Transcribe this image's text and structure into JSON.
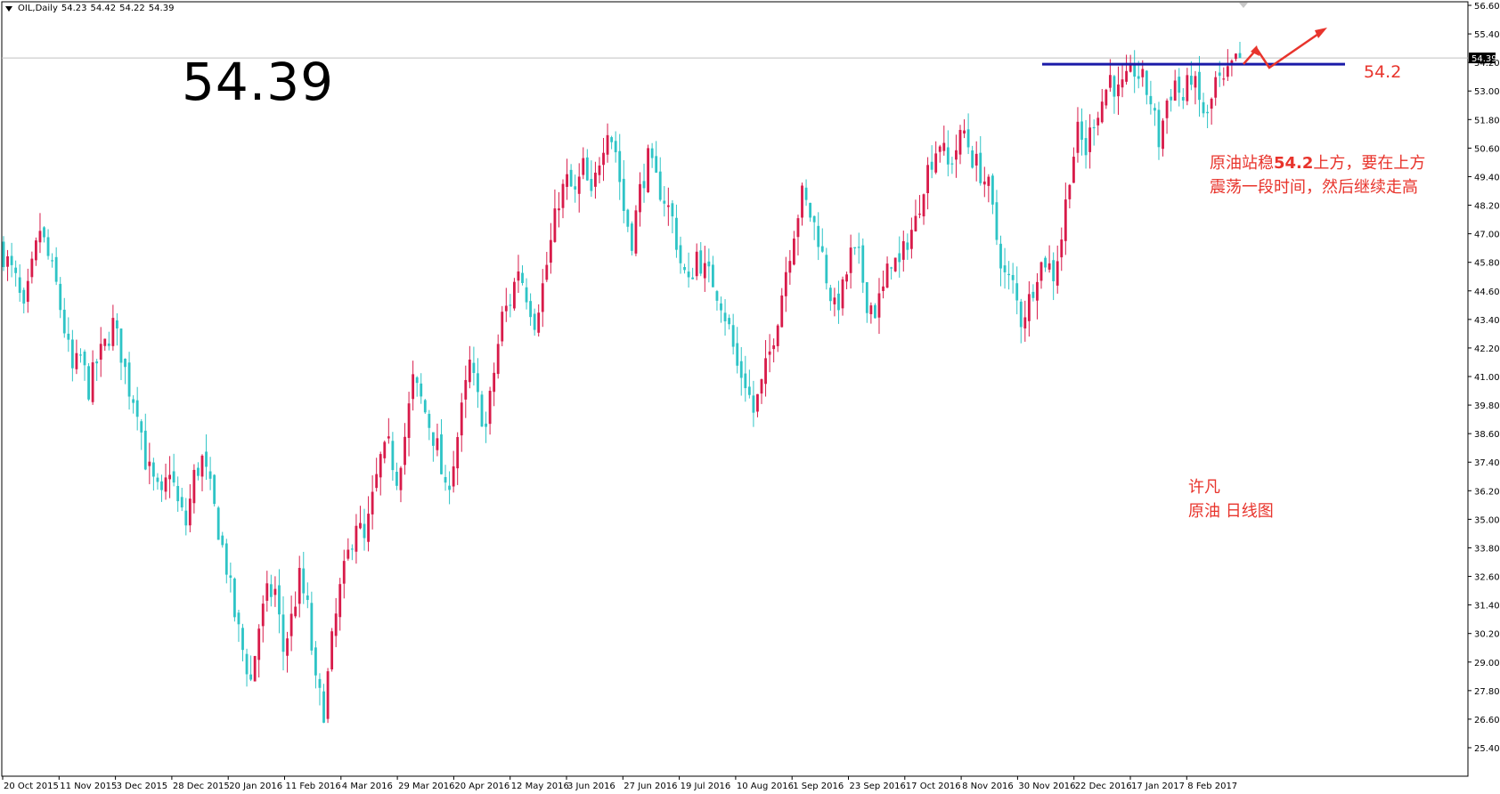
{
  "header": {
    "symbol": "OIL,Daily",
    "ohlc": [
      "54.23",
      "54.42",
      "54.22",
      "54.39"
    ]
  },
  "big_price": "54.39",
  "level_label": "54.2",
  "note": {
    "line1_a": "原油站稳",
    "line1_b": "54.2",
    "line1_c": "上方，要在上方",
    "line2": "震荡一段时间，然后继续走高"
  },
  "author": {
    "name": "许凡",
    "subtitle": "原油 日线图"
  },
  "colors": {
    "bull": "#d81b4a",
    "bear": "#2ec4c6",
    "level": "#1a1aa8",
    "arrow": "#e8342c",
    "current_line": "#c0c0c0"
  },
  "chart_data": {
    "type": "candlestick",
    "title": "",
    "current_price": 54.39,
    "level": 54.2,
    "ylim": [
      25.4,
      56.6
    ],
    "y_ticks": [
      "56.60",
      "55.40",
      "54.20",
      "53.00",
      "51.80",
      "50.60",
      "49.40",
      "48.20",
      "47.00",
      "45.80",
      "44.60",
      "43.40",
      "42.20",
      "41.00",
      "39.80",
      "38.60",
      "37.40",
      "36.20",
      "35.00",
      "33.80",
      "32.60",
      "31.40",
      "30.20",
      "29.00",
      "27.80",
      "26.60",
      "25.40"
    ],
    "x_labels": [
      "20 Oct 2015",
      "11 Nov 2015",
      "3 Dec 2015",
      "28 Dec 2015",
      "20 Jan 2016",
      "11 Feb 2016",
      "4 Mar 2016",
      "29 Mar 2016",
      "20 Apr 2016",
      "12 May 2016",
      "3 Jun 2016",
      "27 Jun 2016",
      "19 Jul 2016",
      "10 Aug 2016",
      "1 Sep 2016",
      "23 Sep 2016",
      "17 Oct 2016",
      "8 Nov 2016",
      "30 Nov 2016",
      "22 Dec 2016",
      "17 Jan 2017",
      "8 Feb 2017"
    ],
    "anchor_closes": [
      46.5,
      45.8,
      45.0,
      43.6,
      45.5,
      47.2,
      46.0,
      44.8,
      43.0,
      41.2,
      41.8,
      40.5,
      41.6,
      42.3,
      43.2,
      42.0,
      40.5,
      39.8,
      37.5,
      36.5,
      35.8,
      37.2,
      35.6,
      34.8,
      36.8,
      37.5,
      36.2,
      34.6,
      33.0,
      31.0,
      29.5,
      28.2,
      30.5,
      31.8,
      32.0,
      29.5,
      30.8,
      32.5,
      31.2,
      28.0,
      27.0,
      29.8,
      32.0,
      33.5,
      35.0,
      34.0,
      35.8,
      37.5,
      38.0,
      36.8,
      38.5,
      40.8,
      40.0,
      39.0,
      38.0,
      36.0,
      37.5,
      39.5,
      41.5,
      40.0,
      38.8,
      41.2,
      43.5,
      44.2,
      45.6,
      44.5,
      43.4,
      44.8,
      46.6,
      48.5,
      49.2,
      48.6,
      49.8,
      48.4,
      50.2,
      51.6,
      50.5,
      48.0,
      46.8,
      48.8,
      50.1,
      49.2,
      48.5,
      47.6,
      45.8,
      44.8,
      46.2,
      45.4,
      45.0,
      44.2,
      43.0,
      41.4,
      40.8,
      39.5,
      40.6,
      42.0,
      43.6,
      45.5,
      47.2,
      48.6,
      47.8,
      46.9,
      45.2,
      43.8,
      44.6,
      46.1,
      45.9,
      44.2,
      43.8,
      44.6,
      46.0,
      45.6,
      46.8,
      47.5,
      49.2,
      50.2,
      50.9,
      49.8,
      50.6,
      51.3,
      50.2,
      49.6,
      48.9,
      46.8,
      45.2,
      44.8,
      43.4,
      44.2,
      45.5,
      45.9,
      45.3,
      46.9,
      49.6,
      51.2,
      50.5,
      51.9,
      52.6,
      53.6,
      52.9,
      53.3,
      53.9,
      53.4,
      52.6,
      50.9,
      52.6,
      53.4,
      52.6,
      53.7,
      52.5,
      51.8,
      53.4,
      53.2,
      54.0,
      54.39
    ]
  }
}
